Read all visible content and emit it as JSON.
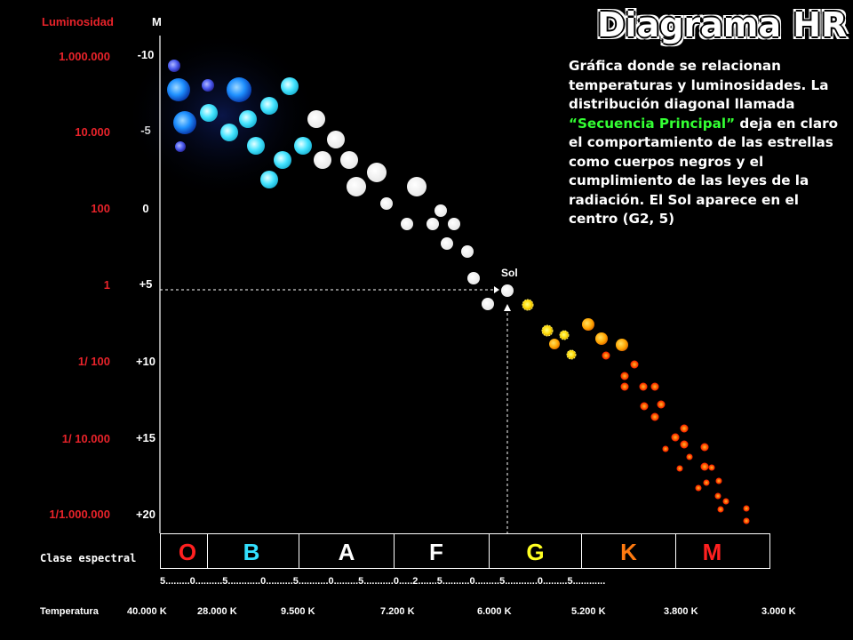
{
  "header": {
    "luminosity_label": "Luminosidad",
    "magnitude_label": "M"
  },
  "title": "Diagrama HR",
  "description": {
    "part1": "Gráfica donde se relacionan temperaturas y luminosidades. La distribución diagonal llamada ",
    "highlight": "“Secuencia Principal”",
    "part2": " deja en claro el comportamiento de las estrellas como cuerpos negros y el cumplimiento de las leyes de la radiación. El Sol aparece en el centro (G2, 5)"
  },
  "luminosity_ticks": [
    "1.000.000",
    "10.000",
    "100",
    "1",
    "1/ 100",
    "1/ 10.000",
    "1/1.000.000"
  ],
  "magnitude_ticks": [
    "-10",
    "-5",
    "0",
    "+5",
    "+10",
    "+15",
    "+20"
  ],
  "sun_label": "Sol",
  "spectral_label": "Clase espectral",
  "spectral_classes": [
    {
      "letter": "O",
      "color": "#ff2020"
    },
    {
      "letter": "B",
      "color": "#33e0ff"
    },
    {
      "letter": "A",
      "color": "#ffffff"
    },
    {
      "letter": "F",
      "color": "#ffffff"
    },
    {
      "letter": "G",
      "color": "#ffff22"
    },
    {
      "letter": "K",
      "color": "#ff7a10"
    },
    {
      "letter": "M",
      "color": "#ff2020"
    }
  ],
  "subclass_scale": "5.........0..........5............0..........5...........0.........5...........0.....2.......5..........0.........5............0.........5............",
  "temperature_label": "Temperatura",
  "temperatures": [
    "40.000 K",
    "28.000 K",
    "9.500 K",
    "7.200 K",
    "6.000 K",
    "5.200  K",
    "3.800 K",
    "3.000 K"
  ],
  "colors": {
    "luminosity": "#e8232a",
    "sequence_highlight": "#33ff33",
    "background": "#000000"
  }
}
